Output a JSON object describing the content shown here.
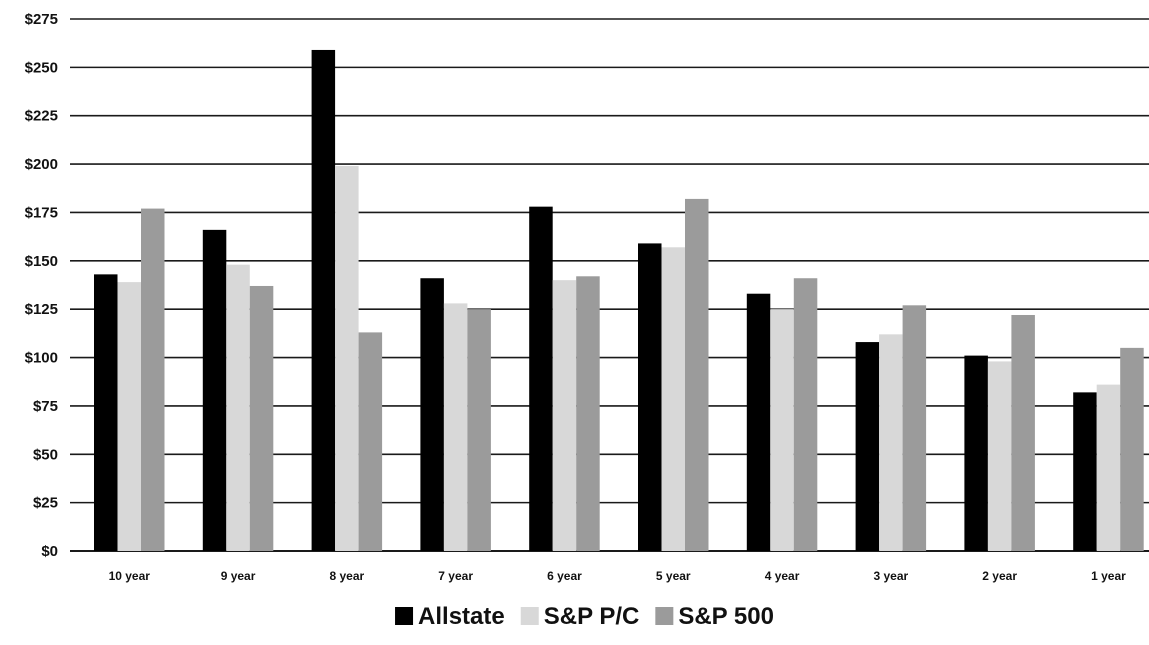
{
  "chart_data": {
    "type": "bar",
    "title": "",
    "xlabel": "",
    "ylabel": "",
    "categories": [
      "10 year",
      "9 year",
      "8 year",
      "7 year",
      "6 year",
      "5 year",
      "4 year",
      "3 year",
      "2 year",
      "1 year"
    ],
    "series": [
      {
        "name": "Allstate",
        "color": "#000000",
        "values": [
          143,
          166,
          259,
          141,
          178,
          159,
          133,
          108,
          101,
          82
        ]
      },
      {
        "name": "S&P P/C",
        "color": "#d8d8d8",
        "values": [
          139,
          148,
          199,
          128,
          140,
          157,
          125,
          112,
          98,
          86
        ]
      },
      {
        "name": "S&P 500",
        "color": "#9b9b9b",
        "values": [
          177,
          137,
          113,
          125,
          142,
          182,
          141,
          127,
          122,
          105
        ]
      }
    ],
    "ylim": [
      0,
      275
    ],
    "yticks": [
      0,
      25,
      50,
      75,
      100,
      125,
      150,
      175,
      200,
      225,
      250,
      275
    ],
    "ytick_labels": [
      "$0",
      "$25",
      "$50",
      "$75",
      "$100",
      "$125",
      "$150",
      "$175",
      "$200",
      "$225",
      "$250",
      "$275"
    ],
    "grid": true,
    "legend_position": "bottom-center"
  }
}
